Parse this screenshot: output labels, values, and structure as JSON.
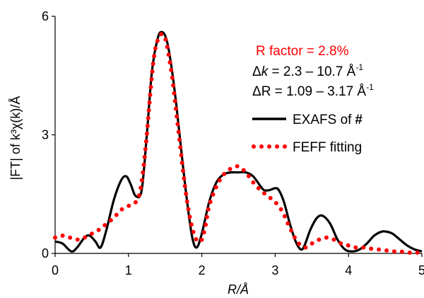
{
  "chart_data": {
    "type": "line",
    "xlabel_var": "R",
    "xlabel_unit": "/Å",
    "ylabel": "|FT| of k³χ(k)/Å",
    "xlim": [
      0,
      5
    ],
    "ylim": [
      0,
      6
    ],
    "x_ticks": [
      "0",
      "1",
      "2",
      "3",
      "4",
      "5"
    ],
    "y_ticks": [
      "0",
      "3",
      "6"
    ],
    "grid": false,
    "legend_position": "right",
    "annotations": {
      "r_factor": "R factor = 2.8%",
      "dk_prefix": "Δ",
      "dk_var": "k",
      "dk_value": " =  2.3 – 10.7 Å",
      "dk_sup": "-1",
      "dr_prefix": "ΔR =  1.09 – 3.17 Å",
      "dr_sup": "-1"
    },
    "series": [
      {
        "name": "EXAFS of",
        "name_suffix": "#",
        "color": "#000000",
        "style": "solid",
        "x": [
          0,
          0.1,
          0.22,
          0.3,
          0.4,
          0.47,
          0.55,
          0.62,
          0.7,
          0.8,
          0.9,
          0.97,
          1.03,
          1.1,
          1.18,
          1.25,
          1.32,
          1.4,
          1.46,
          1.52,
          1.58,
          1.65,
          1.72,
          1.8,
          1.87,
          1.93,
          2.0,
          2.1,
          2.2,
          2.3,
          2.4,
          2.5,
          2.6,
          2.7,
          2.8,
          2.85,
          2.92,
          3.0,
          3.05,
          3.12,
          3.2,
          3.28,
          3.35,
          3.4,
          3.48,
          3.57,
          3.65,
          3.75,
          3.85,
          3.95,
          4.05,
          4.15,
          4.25,
          4.35,
          4.45,
          4.52,
          4.6,
          4.7,
          4.8,
          4.9,
          5.0
        ],
        "y": [
          0.3,
          0.25,
          0.05,
          0.15,
          0.4,
          0.45,
          0.3,
          0.15,
          0.6,
          1.35,
          1.85,
          1.95,
          1.75,
          1.45,
          1.6,
          3.0,
          4.6,
          5.45,
          5.6,
          5.4,
          4.8,
          3.8,
          2.6,
          1.3,
          0.4,
          0.15,
          0.5,
          1.3,
          1.8,
          2.0,
          2.05,
          2.05,
          2.05,
          1.95,
          1.7,
          1.6,
          1.6,
          1.65,
          1.6,
          1.3,
          0.75,
          0.3,
          0.1,
          0.2,
          0.6,
          0.9,
          0.95,
          0.75,
          0.35,
          0.1,
          0.05,
          0.1,
          0.25,
          0.45,
          0.55,
          0.55,
          0.5,
          0.35,
          0.2,
          0.1,
          0.05
        ]
      },
      {
        "name": "FEFF fitting",
        "color": "#ff0000",
        "style": "dotted",
        "x": [
          0,
          0.1,
          0.2,
          0.3,
          0.4,
          0.5,
          0.6,
          0.7,
          0.8,
          0.9,
          1.0,
          1.05,
          1.1,
          1.15,
          1.2,
          1.25,
          1.3,
          1.35,
          1.4,
          1.45,
          1.5,
          1.55,
          1.6,
          1.65,
          1.7,
          1.75,
          1.8,
          1.85,
          1.9,
          1.95,
          2.0,
          2.05,
          2.1,
          2.2,
          2.3,
          2.4,
          2.5,
          2.6,
          2.7,
          2.8,
          2.9,
          3.0,
          3.1,
          3.2,
          3.3,
          3.4,
          3.5,
          3.6,
          3.7,
          3.8,
          3.9,
          4.0,
          4.1,
          4.2,
          4.3,
          4.4,
          4.5,
          4.6,
          4.7,
          4.8,
          4.9,
          5.0
        ],
        "y": [
          0.4,
          0.45,
          0.4,
          0.35,
          0.4,
          0.5,
          0.6,
          0.75,
          0.9,
          1.1,
          1.2,
          1.25,
          1.3,
          1.5,
          2.1,
          3.0,
          4.1,
          5.0,
          5.4,
          5.55,
          5.45,
          5.0,
          4.4,
          3.6,
          2.8,
          2.0,
          1.3,
          0.8,
          0.45,
          0.3,
          0.35,
          0.7,
          1.2,
          1.7,
          2.0,
          2.15,
          2.2,
          2.05,
          1.8,
          1.6,
          1.45,
          1.3,
          1.05,
          0.65,
          0.3,
          0.15,
          0.25,
          0.35,
          0.4,
          0.35,
          0.25,
          0.2,
          0.15,
          0.15,
          0.12,
          0.1,
          0.08,
          0.05,
          0.05,
          0.02,
          0.02,
          0.02
        ]
      }
    ]
  }
}
